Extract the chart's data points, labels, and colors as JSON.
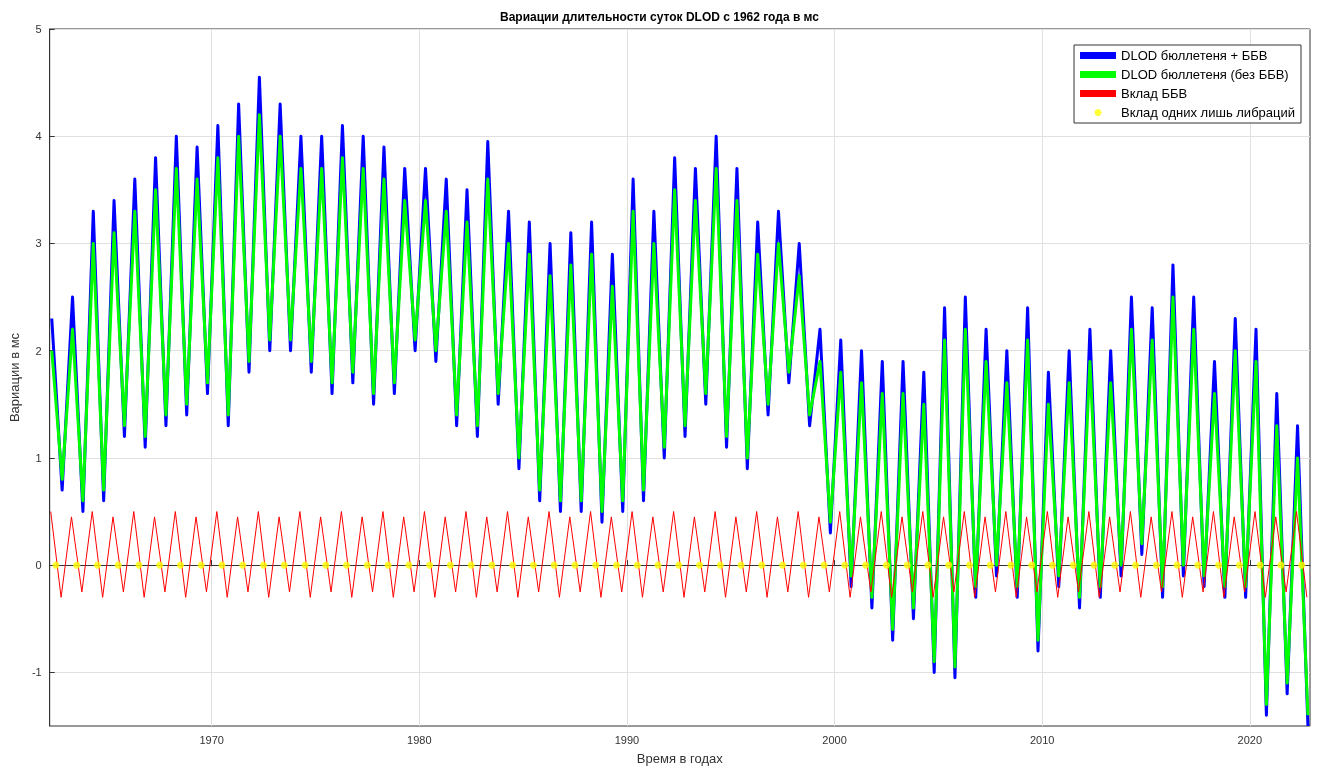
{
  "chart_data": {
    "type": "line",
    "title": "Вариации длительности суток DLOD с 1962 года в мс",
    "xlabel": "Время в годах",
    "ylabel": "Вариации в мс",
    "xlim": [
      1962.2,
      2022.9
    ],
    "xticks": [
      1970,
      1980,
      1990,
      2000,
      2010,
      2020
    ],
    "ylim": [
      -1.5,
      5
    ],
    "yticks": [
      -1,
      0,
      1,
      2,
      3,
      4,
      5
    ],
    "grid": true,
    "legend": "top right",
    "x": [
      1962.3,
      1962.8,
      1963.3,
      1963.8,
      1964.3,
      1964.8,
      1965.3,
      1965.8,
      1966.3,
      1966.8,
      1967.3,
      1967.8,
      1968.3,
      1968.8,
      1969.3,
      1969.8,
      1970.3,
      1970.8,
      1971.3,
      1971.8,
      1972.3,
      1972.8,
      1973.3,
      1973.8,
      1974.3,
      1974.8,
      1975.3,
      1975.8,
      1976.3,
      1976.8,
      1977.3,
      1977.8,
      1978.3,
      1978.8,
      1979.3,
      1979.8,
      1980.3,
      1980.8,
      1981.3,
      1981.8,
      1982.3,
      1982.8,
      1983.3,
      1983.8,
      1984.3,
      1984.8,
      1985.3,
      1985.8,
      1986.3,
      1986.8,
      1987.3,
      1987.8,
      1988.3,
      1988.8,
      1989.3,
      1989.8,
      1990.3,
      1990.8,
      1991.3,
      1991.8,
      1992.3,
      1992.8,
      1993.3,
      1993.8,
      1994.3,
      1994.8,
      1995.3,
      1995.8,
      1996.3,
      1996.8,
      1997.3,
      1997.8,
      1998.3,
      1998.8,
      1999.3,
      1999.8,
      2000.3,
      2000.8,
      2001.3,
      2001.8,
      2002.3,
      2002.8,
      2003.3,
      2003.8,
      2004.3,
      2004.8,
      2005.3,
      2005.8,
      2006.3,
      2006.8,
      2007.3,
      2007.8,
      2008.3,
      2008.8,
      2009.3,
      2009.8,
      2010.3,
      2010.8,
      2011.3,
      2011.8,
      2012.3,
      2012.8,
      2013.3,
      2013.8,
      2014.3,
      2014.8,
      2015.3,
      2015.8,
      2016.3,
      2016.8,
      2017.3,
      2017.8,
      2018.3,
      2018.8,
      2019.3,
      2019.8,
      2020.3,
      2020.8,
      2021.3,
      2021.8,
      2022.3,
      2022.8
    ],
    "series": [
      {
        "name": "DLOD бюллетеня + ББВ",
        "color": "#0000ff",
        "values": [
          2.3,
          0.7,
          2.5,
          0.5,
          3.3,
          0.6,
          3.4,
          1.2,
          3.6,
          1.1,
          3.8,
          1.3,
          4.0,
          1.4,
          3.9,
          1.6,
          4.1,
          1.3,
          4.3,
          1.8,
          4.55,
          2.0,
          4.3,
          2.0,
          4.0,
          1.8,
          4.0,
          1.6,
          4.1,
          1.7,
          4.0,
          1.5,
          3.9,
          1.6,
          3.7,
          2.0,
          3.7,
          1.9,
          3.6,
          1.3,
          3.5,
          1.2,
          3.95,
          1.5,
          3.3,
          0.9,
          3.2,
          0.6,
          3.0,
          0.5,
          3.1,
          0.5,
          3.2,
          0.4,
          2.9,
          0.5,
          3.6,
          0.6,
          3.3,
          1.0,
          3.8,
          1.2,
          3.7,
          1.5,
          4.0,
          1.1,
          3.7,
          0.9,
          3.2,
          1.4,
          3.3,
          1.7,
          3.0,
          1.3,
          2.2,
          0.3,
          2.1,
          -0.2,
          2.0,
          -0.4,
          1.9,
          -0.7,
          1.9,
          -0.5,
          1.8,
          -1.0,
          2.4,
          -1.05,
          2.5,
          -0.3,
          2.2,
          -0.1,
          2.0,
          -0.3,
          2.4,
          -0.8,
          1.8,
          -0.2,
          2.0,
          -0.4,
          2.2,
          -0.3,
          2.0,
          -0.1,
          2.5,
          0.1,
          2.4,
          -0.3,
          2.8,
          -0.1,
          2.5,
          -0.2,
          1.9,
          -0.3,
          2.3,
          -0.3,
          2.2,
          -1.4,
          1.6,
          -1.2,
          1.3,
          -1.5
        ]
      },
      {
        "name": "DLOD бюллетеня (без ББВ)",
        "color": "#00ff00",
        "values": [
          2.0,
          0.8,
          2.2,
          0.6,
          3.0,
          0.7,
          3.1,
          1.3,
          3.3,
          1.2,
          3.5,
          1.4,
          3.7,
          1.5,
          3.6,
          1.7,
          3.8,
          1.4,
          4.0,
          1.9,
          4.2,
          2.1,
          4.0,
          2.1,
          3.7,
          1.9,
          3.7,
          1.7,
          3.8,
          1.8,
          3.7,
          1.6,
          3.6,
          1.7,
          3.4,
          2.1,
          3.4,
          2.0,
          3.3,
          1.4,
          3.2,
          1.3,
          3.6,
          1.6,
          3.0,
          1.0,
          2.9,
          0.7,
          2.7,
          0.6,
          2.8,
          0.6,
          2.9,
          0.5,
          2.6,
          0.6,
          3.3,
          0.7,
          3.0,
          1.1,
          3.5,
          1.3,
          3.4,
          1.6,
          3.7,
          1.2,
          3.4,
          1.0,
          2.9,
          1.5,
          3.0,
          1.8,
          2.7,
          1.4,
          1.9,
          0.4,
          1.8,
          -0.1,
          1.7,
          -0.3,
          1.6,
          -0.6,
          1.6,
          -0.4,
          1.5,
          -0.9,
          2.1,
          -0.95,
          2.2,
          -0.2,
          1.9,
          0.0,
          1.7,
          -0.2,
          2.1,
          -0.7,
          1.5,
          -0.1,
          1.7,
          -0.3,
          1.9,
          -0.2,
          1.7,
          0.0,
          2.2,
          0.2,
          2.1,
          -0.2,
          2.5,
          0.0,
          2.2,
          -0.1,
          1.6,
          -0.2,
          2.0,
          -0.2,
          1.9,
          -1.3,
          1.3,
          -1.1,
          1.0,
          -1.4
        ]
      },
      {
        "name": "Вклад ББВ",
        "color": "#ff0000",
        "x": [
          1962.25,
          1962.75,
          1963.25,
          1963.75,
          1964.25,
          1964.75,
          1965.25,
          1965.75,
          1966.25,
          1966.75,
          1967.25,
          1967.75,
          1968.25,
          1968.75,
          1969.25,
          1969.75,
          1970.25,
          1970.75,
          1971.25,
          1971.75,
          1972.25,
          1972.75,
          1973.25,
          1973.75,
          1974.25,
          1974.75,
          1975.25,
          1975.75,
          1976.25,
          1976.75,
          1977.25,
          1977.75,
          1978.25,
          1978.75,
          1979.25,
          1979.75,
          1980.25,
          1980.75,
          1981.25,
          1981.75,
          1982.25,
          1982.75,
          1983.25,
          1983.75,
          1984.25,
          1984.75,
          1985.25,
          1985.75,
          1986.25,
          1986.75,
          1987.25,
          1987.75,
          1988.25,
          1988.75,
          1989.25,
          1989.75,
          1990.25,
          1990.75,
          1991.25,
          1991.75,
          1992.25,
          1992.75,
          1993.25,
          1993.75,
          1994.25,
          1994.75,
          1995.25,
          1995.75,
          1996.25,
          1996.75,
          1997.25,
          1997.75,
          1998.25,
          1998.75,
          1999.25,
          1999.75,
          2000.25,
          2000.75,
          2001.25,
          2001.75,
          2002.25,
          2002.75,
          2003.25,
          2003.75,
          2004.25,
          2004.75,
          2005.25,
          2005.75,
          2006.25,
          2006.75,
          2007.25,
          2007.75,
          2008.25,
          2008.75,
          2009.25,
          2009.75,
          2010.25,
          2010.75,
          2011.25,
          2011.75,
          2012.25,
          2012.75,
          2013.25,
          2013.75,
          2014.25,
          2014.75,
          2015.25,
          2015.75,
          2016.25,
          2016.75,
          2017.25,
          2017.75,
          2018.25,
          2018.75,
          2019.25,
          2019.75,
          2020.25,
          2020.75,
          2021.25,
          2021.75,
          2022.25,
          2022.75
        ],
        "values": [
          0.5,
          -0.3,
          0.45,
          -0.25,
          0.5,
          -0.3,
          0.45,
          -0.25,
          0.5,
          -0.3,
          0.45,
          -0.25,
          0.5,
          -0.3,
          0.45,
          -0.25,
          0.5,
          -0.3,
          0.45,
          -0.25,
          0.5,
          -0.3,
          0.45,
          -0.25,
          0.5,
          -0.3,
          0.45,
          -0.25,
          0.5,
          -0.3,
          0.45,
          -0.25,
          0.5,
          -0.3,
          0.45,
          -0.25,
          0.5,
          -0.3,
          0.45,
          -0.25,
          0.5,
          -0.3,
          0.45,
          -0.25,
          0.5,
          -0.3,
          0.45,
          -0.25,
          0.5,
          -0.3,
          0.45,
          -0.25,
          0.5,
          -0.3,
          0.45,
          -0.25,
          0.5,
          -0.3,
          0.45,
          -0.25,
          0.5,
          -0.3,
          0.45,
          -0.25,
          0.5,
          -0.3,
          0.45,
          -0.25,
          0.5,
          -0.3,
          0.45,
          -0.25,
          0.5,
          -0.3,
          0.45,
          -0.25,
          0.5,
          -0.3,
          0.45,
          -0.25,
          0.5,
          -0.3,
          0.45,
          -0.25,
          0.5,
          -0.3,
          0.45,
          -0.25,
          0.5,
          -0.3,
          0.45,
          -0.25,
          0.5,
          -0.3,
          0.45,
          -0.25,
          0.5,
          -0.3,
          0.45,
          -0.25,
          0.5,
          -0.3,
          0.45,
          -0.25,
          0.5,
          -0.3,
          0.45,
          -0.25,
          0.5,
          -0.3,
          0.45,
          -0.25,
          0.5,
          -0.3,
          0.45,
          -0.25,
          0.5,
          -0.3,
          0.45,
          -0.25,
          0.5,
          -0.3
        ]
      },
      {
        "name": "Вклад одних лишь либраций",
        "type": "scatter",
        "color": "#ffff00",
        "x": [
          1962.5,
          1963.5,
          1964.5,
          1965.5,
          1966.5,
          1967.5,
          1968.5,
          1969.5,
          1970.5,
          1971.5,
          1972.5,
          1973.5,
          1974.5,
          1975.5,
          1976.5,
          1977.5,
          1978.5,
          1979.5,
          1980.5,
          1981.5,
          1982.5,
          1983.5,
          1984.5,
          1985.5,
          1986.5,
          1987.5,
          1988.5,
          1989.5,
          1990.5,
          1991.5,
          1992.5,
          1993.5,
          1994.5,
          1995.5,
          1996.5,
          1997.5,
          1998.5,
          1999.5,
          2000.5,
          2001.5,
          2002.5,
          2003.5,
          2004.5,
          2005.5,
          2006.5,
          2007.5,
          2008.5,
          2009.5,
          2010.5,
          2011.5,
          2012.5,
          2013.5,
          2014.5,
          2015.5,
          2016.5,
          2017.5,
          2018.5,
          2019.5,
          2020.5,
          2021.5,
          2022.5
        ],
        "values": [
          0,
          0,
          0,
          0,
          0,
          0,
          0,
          0,
          0,
          0,
          0,
          0,
          0,
          0,
          0,
          0,
          0,
          0,
          0,
          0,
          0,
          0,
          0,
          0,
          0,
          0,
          0,
          0,
          0,
          0,
          0,
          0,
          0,
          0,
          0,
          0,
          0,
          0,
          0,
          0,
          0,
          0,
          0,
          0,
          0,
          0,
          0,
          0,
          0,
          0,
          0,
          0,
          0,
          0,
          0,
          0,
          0,
          0,
          0,
          0,
          0
        ]
      }
    ]
  }
}
